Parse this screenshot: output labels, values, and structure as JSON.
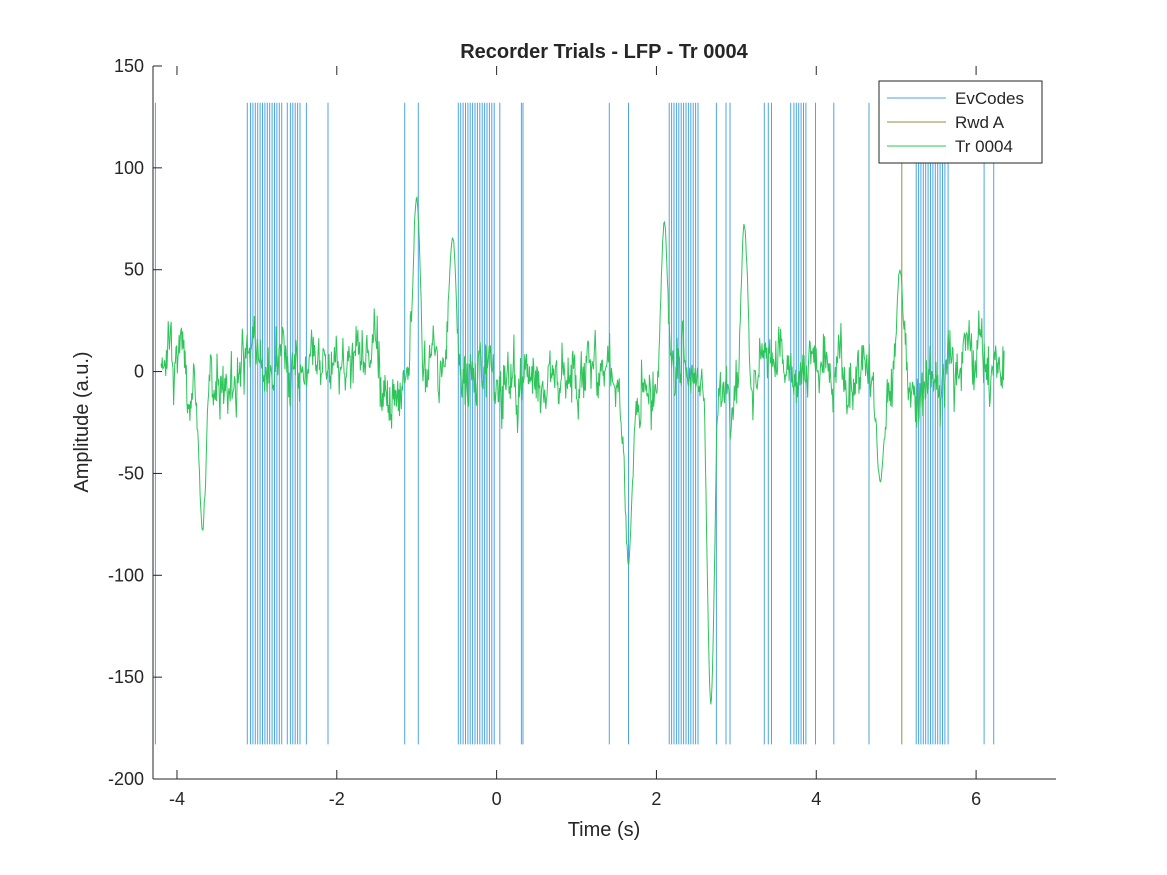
{
  "chart_data": {
    "type": "line",
    "title": "Recorder Trials - LFP - Tr 0004",
    "xlabel": "Time (s)",
    "ylabel": "Amplitude (a.u.)",
    "xlim": [
      -4.3,
      7.0
    ],
    "ylim": [
      -200,
      150
    ],
    "xticks": [
      -4,
      -2,
      0,
      2,
      4,
      6
    ],
    "yticks": [
      -200,
      -150,
      -100,
      -50,
      0,
      50,
      100,
      150
    ],
    "grid": false,
    "legend": {
      "placement": "top-right",
      "entries": [
        "EvCodes",
        "Rwd A",
        "Tr 0004"
      ]
    },
    "series": [
      {
        "name": "EvCodes",
        "kind": "vertical-event-lines",
        "color": "#4DA6E0",
        "y_range": [
          -183,
          132
        ],
        "x": [
          -4.27,
          -3.12,
          -3.08,
          -3.05,
          -3.02,
          -2.99,
          -2.96,
          -2.93,
          -2.9,
          -2.87,
          -2.84,
          -2.81,
          -2.78,
          -2.75,
          -2.72,
          -2.69,
          -2.62,
          -2.58,
          -2.55,
          -2.52,
          -2.49,
          -2.46,
          -2.38,
          -2.11,
          -1.15,
          -0.98,
          -0.48,
          -0.45,
          -0.42,
          -0.39,
          -0.36,
          -0.33,
          -0.3,
          -0.27,
          -0.24,
          -0.21,
          -0.18,
          -0.15,
          -0.12,
          -0.09,
          -0.06,
          -0.03,
          0.04,
          0.31,
          0.33,
          1.41,
          1.65,
          2.16,
          2.19,
          2.22,
          2.25,
          2.28,
          2.31,
          2.34,
          2.37,
          2.4,
          2.43,
          2.46,
          2.49,
          2.52,
          2.75,
          2.87,
          2.92,
          3.35,
          3.4,
          3.44,
          3.68,
          3.72,
          3.75,
          3.78,
          3.81,
          3.84,
          3.87,
          3.99,
          4.22,
          4.66,
          5.25,
          5.28,
          5.31,
          5.34,
          5.37,
          5.4,
          5.43,
          5.46,
          5.49,
          5.52,
          5.55,
          5.58,
          5.61,
          5.65,
          6.1,
          6.22
        ]
      },
      {
        "name": "Rwd A",
        "kind": "vertical-event-lines",
        "color": "#A08A3C",
        "y_range": [
          -183,
          105
        ],
        "x": [
          5.07
        ]
      },
      {
        "name": "Tr 0004",
        "kind": "signal",
        "color": "#2DC45A",
        "x_range": [
          -4.2,
          6.35
        ],
        "notable_points": [
          {
            "x": -3.68,
            "y": -85
          },
          {
            "x": -1.0,
            "y": 94
          },
          {
            "x": -0.55,
            "y": 73
          },
          {
            "x": 1.65,
            "y": -105
          },
          {
            "x": 2.1,
            "y": 83
          },
          {
            "x": 2.68,
            "y": -180
          },
          {
            "x": 3.1,
            "y": 81
          },
          {
            "x": 5.05,
            "y": 56
          },
          {
            "x": 4.8,
            "y": -60
          }
        ]
      }
    ]
  }
}
